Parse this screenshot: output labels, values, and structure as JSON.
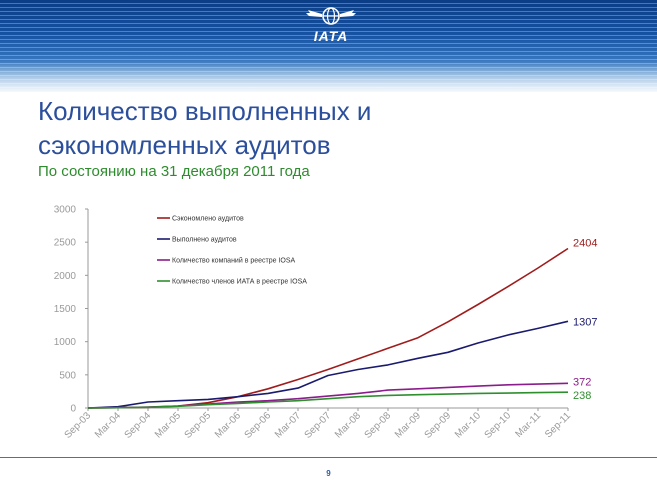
{
  "header": {
    "logo_text": "IATA"
  },
  "slide": {
    "title_line1": "Количество выполненных и",
    "title_line2": "сэкономленных аудитов",
    "subtitle": "По состоянию на 31 декабря 2011 года",
    "page_number": "9"
  },
  "colors": {
    "saved": "#a01c1c",
    "performed": "#1a1a6e",
    "iosa": "#8b1c8b",
    "members": "#2f8f2f",
    "title": "#2c4f9c",
    "subtitle": "#2e8b2e"
  },
  "chart_data": {
    "type": "line",
    "categories": [
      "Sep-03",
      "Mar-04",
      "Sep-04",
      "Mar-05",
      "Sep-05",
      "Mar-06",
      "Sep-06",
      "Mar-07",
      "Sep-07",
      "Mar-08",
      "Sep-08",
      "Mar-09",
      "Sep-09",
      "Mar-10",
      "Sep-10",
      "Mar-11",
      "Sep-11"
    ],
    "ylim": [
      0,
      3000
    ],
    "yticks": [
      0,
      500,
      1000,
      1500,
      2000,
      2500,
      3000
    ],
    "grid": false,
    "legend_position": "top-left",
    "series": [
      {
        "name": "Сэкономлено аудитов",
        "color_key": "saved",
        "values": [
          0,
          5,
          10,
          30,
          80,
          170,
          290,
          430,
          580,
          740,
          900,
          1060,
          1300,
          1560,
          1830,
          2110,
          2404
        ],
        "end_label": "2404"
      },
      {
        "name": "Выполнено аудитов",
        "color_key": "performed",
        "values": [
          0,
          20,
          90,
          110,
          130,
          170,
          220,
          300,
          490,
          580,
          650,
          750,
          840,
          980,
          1100,
          1200,
          1307
        ],
        "end_label": "1307"
      },
      {
        "name": "Количество компаний в реестре IOSA",
        "color_key": "iosa",
        "values": [
          0,
          5,
          15,
          30,
          60,
          90,
          110,
          140,
          180,
          220,
          270,
          290,
          310,
          330,
          350,
          360,
          372
        ],
        "end_label": "372"
      },
      {
        "name": "Количество членов ИАТА в реестре IOSA",
        "color_key": "members",
        "values": [
          0,
          5,
          10,
          25,
          50,
          70,
          90,
          110,
          140,
          170,
          190,
          200,
          210,
          220,
          225,
          232,
          238
        ],
        "end_label": "238"
      }
    ]
  }
}
